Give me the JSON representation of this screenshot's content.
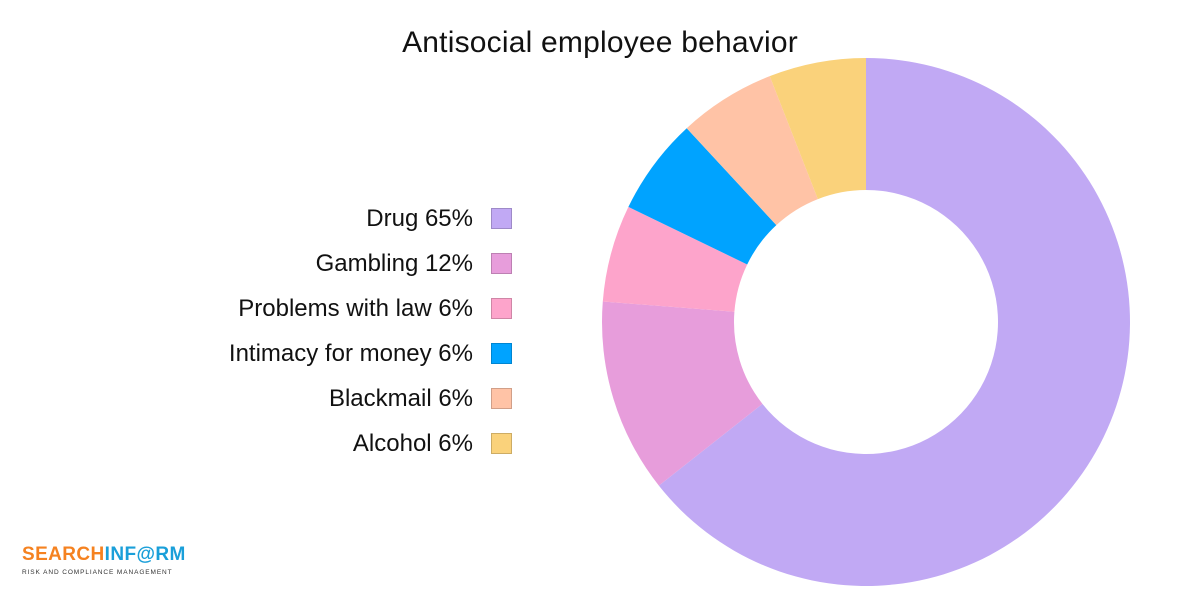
{
  "chart_data": {
    "type": "pie",
    "title": "Antisocial employee behavior",
    "donut": true,
    "legend_position": "left",
    "categories": [
      "Drug",
      "Gambling",
      "Problems with law",
      "Intimacy for money",
      "Blackmail",
      "Alcohol"
    ],
    "values": [
      65,
      12,
      6,
      6,
      6,
      6
    ],
    "legend_labels": [
      "Drug 65%",
      "Gambling 12%",
      "Problems with law 6%",
      "Intimacy for money 6%",
      "Blackmail 6%",
      "Alcohol 6%"
    ],
    "colors": [
      "#c1a9f4",
      "#e79ddb",
      "#fda4cb",
      "#00a3ff",
      "#ffc3a6",
      "#fad27b"
    ]
  },
  "logo": {
    "part1": "SEARCH",
    "part2": "INF@RM",
    "tagline": "RISK AND COMPLIANCE MANAGEMENT"
  }
}
